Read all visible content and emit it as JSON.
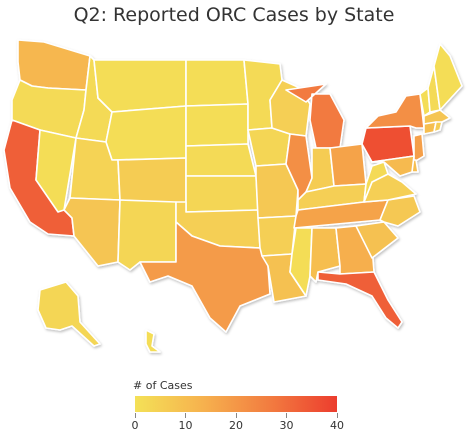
{
  "title": "Q2: Reported ORC Cases by State",
  "legend": {
    "title": "# of Cases",
    "ticks": [
      "0",
      "10",
      "20",
      "30",
      "40"
    ],
    "min": 0,
    "max": 40,
    "colors": [
      "#f4e157",
      "#f6b24e",
      "#f27c40",
      "#ec3d2e"
    ]
  },
  "states": [
    {
      "id": "WA",
      "value": 12
    },
    {
      "id": "OR",
      "value": 2
    },
    {
      "id": "CA",
      "value": 33
    },
    {
      "id": "NV",
      "value": 1
    },
    {
      "id": "ID",
      "value": 2
    },
    {
      "id": "MT",
      "value": 1
    },
    {
      "id": "WY",
      "value": 1
    },
    {
      "id": "UT",
      "value": 4
    },
    {
      "id": "AZ",
      "value": 8
    },
    {
      "id": "CO",
      "value": 6
    },
    {
      "id": "NM",
      "value": 3
    },
    {
      "id": "ND",
      "value": 1
    },
    {
      "id": "SD",
      "value": 1
    },
    {
      "id": "NE",
      "value": 2
    },
    {
      "id": "KS",
      "value": 3
    },
    {
      "id": "OK",
      "value": 5
    },
    {
      "id": "TX",
      "value": 19
    },
    {
      "id": "MN",
      "value": 2
    },
    {
      "id": "IA",
      "value": 3
    },
    {
      "id": "MO",
      "value": 7
    },
    {
      "id": "AR",
      "value": 5
    },
    {
      "id": "LA",
      "value": 9
    },
    {
      "id": "WI",
      "value": 5
    },
    {
      "id": "IL",
      "value": 22
    },
    {
      "id": "MI",
      "value": 27
    },
    {
      "id": "IN",
      "value": 6
    },
    {
      "id": "OH",
      "value": 17
    },
    {
      "id": "KY",
      "value": 5
    },
    {
      "id": "TN",
      "value": 17
    },
    {
      "id": "MS",
      "value": 1
    },
    {
      "id": "AL",
      "value": 10
    },
    {
      "id": "GA",
      "value": 14
    },
    {
      "id": "FL",
      "value": 33
    },
    {
      "id": "SC",
      "value": 9
    },
    {
      "id": "NC",
      "value": 7
    },
    {
      "id": "VA",
      "value": 5
    },
    {
      "id": "WV",
      "value": 2
    },
    {
      "id": "PA",
      "value": 36
    },
    {
      "id": "NY",
      "value": 22
    },
    {
      "id": "VT",
      "value": 1
    },
    {
      "id": "NH",
      "value": 2
    },
    {
      "id": "ME",
      "value": 1
    },
    {
      "id": "MA",
      "value": 8
    },
    {
      "id": "CT",
      "value": 10
    },
    {
      "id": "RI",
      "value": 6
    },
    {
      "id": "NJ",
      "value": 18
    },
    {
      "id": "DE",
      "value": 10
    },
    {
      "id": "MD",
      "value": 11
    },
    {
      "id": "AK",
      "value": 3
    },
    {
      "id": "HI",
      "value": 1
    }
  ]
}
